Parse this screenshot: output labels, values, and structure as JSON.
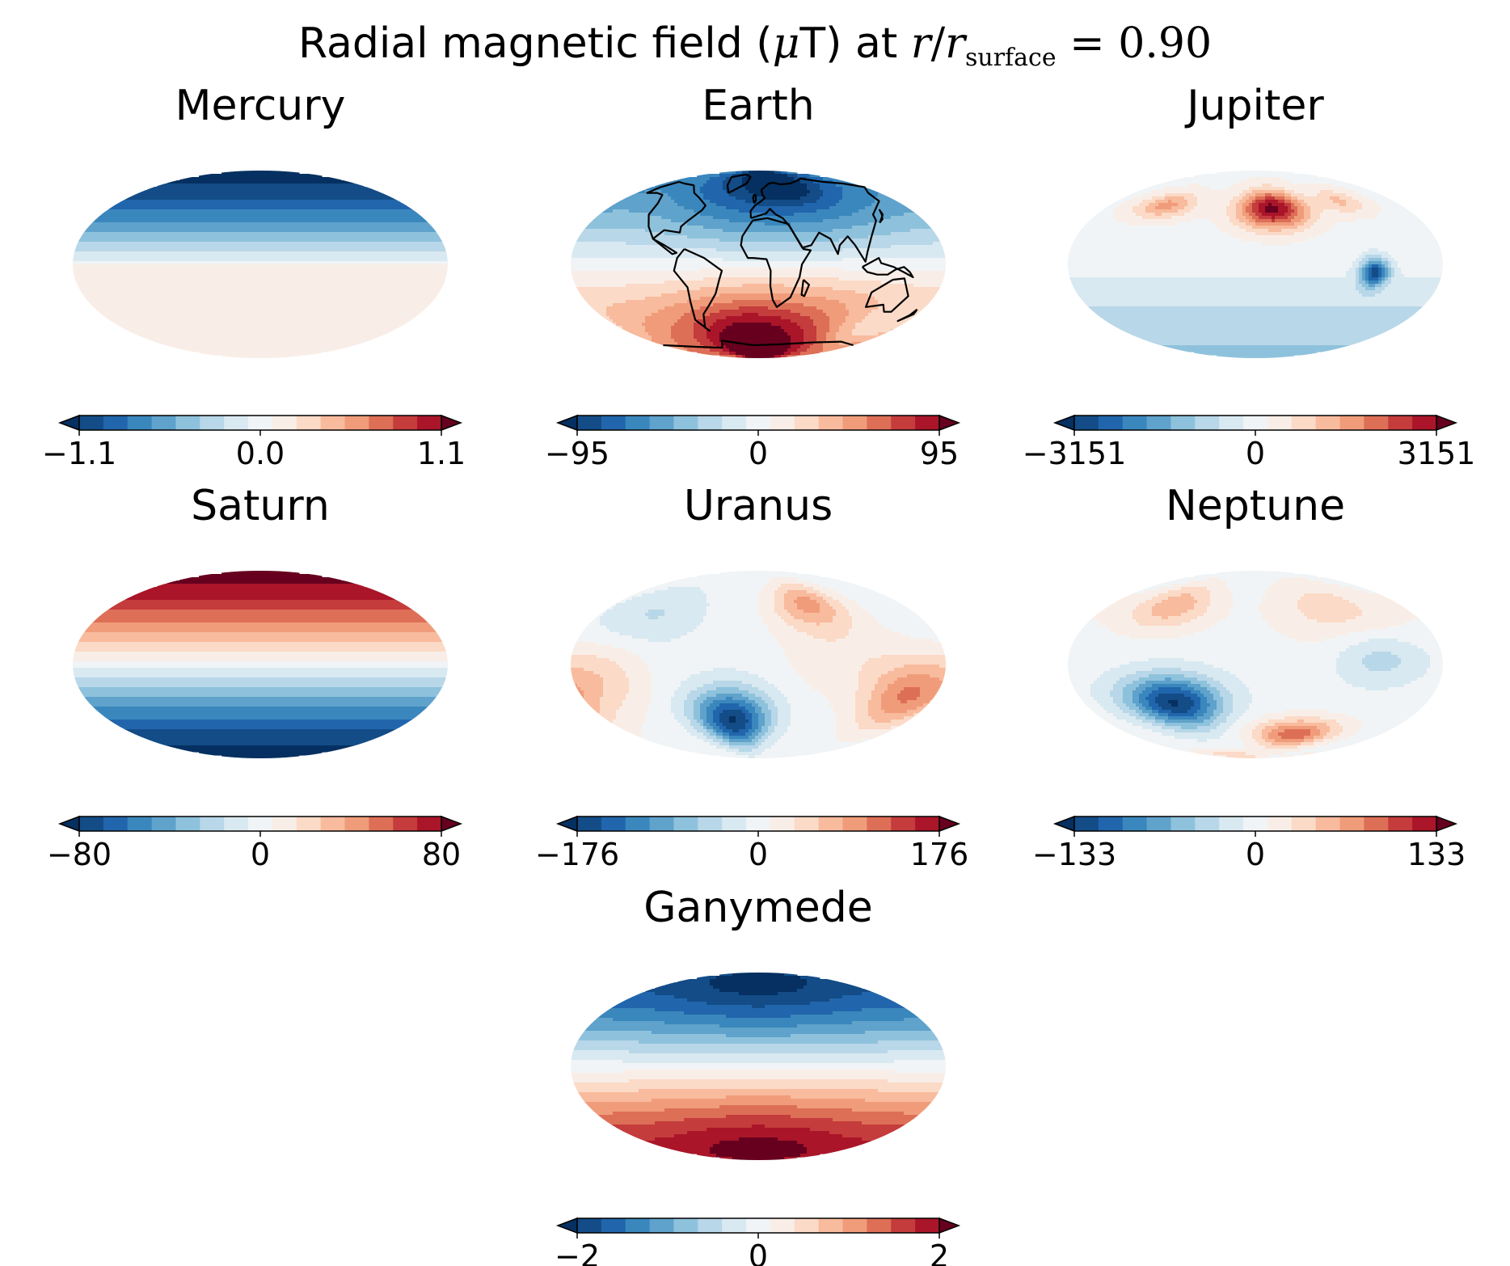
{
  "figure": {
    "title_prefix": "Radial magnetic field (",
    "title_mu": "μ",
    "title_mid": "T) at ",
    "title_r": "r",
    "title_slash": "/",
    "title_r2": "r",
    "title_sub": "surface",
    "title_eq": " = ",
    "title_val": "0.90"
  },
  "colormap": [
    "#053061",
    "#134c87",
    "#2166ac",
    "#3a87bd",
    "#5fa2cb",
    "#8ec2dc",
    "#b8d7e8",
    "#d9e9f1",
    "#f0f4f6",
    "#f9eee7",
    "#fbdac7",
    "#f8bb9d",
    "#f09c7b",
    "#dd6f57",
    "#c43c3c",
    "#aa1529",
    "#67001f"
  ],
  "chart_data": [
    {
      "type": "heatmap",
      "title": "Mercury",
      "projection": "mollweide",
      "colorbar": {
        "min": -1.1,
        "max": 1.1,
        "ticks": [
          "−1.1",
          "0.0",
          "1.1"
        ],
        "extend": "both"
      },
      "pattern": "zonal dipole, negative in north"
    },
    {
      "type": "heatmap",
      "title": "Earth",
      "projection": "mollweide",
      "coastlines": true,
      "colorbar": {
        "min": -95,
        "max": 95,
        "ticks": [
          "−95",
          "0",
          "95"
        ],
        "extend": "both"
      },
      "pattern": "dipole, negative in north"
    },
    {
      "type": "heatmap",
      "title": "Jupiter",
      "projection": "mollweide",
      "colorbar": {
        "min": -3151,
        "max": 3151,
        "ticks": [
          "−3151",
          "0",
          "3151"
        ],
        "extend": "both"
      },
      "pattern": "strong positive northern spot, negative equatorial spot"
    },
    {
      "type": "heatmap",
      "title": "Saturn",
      "projection": "mollweide",
      "colorbar": {
        "min": -80,
        "max": 80,
        "ticks": [
          "−80",
          "0",
          "80"
        ],
        "extend": "both"
      },
      "pattern": "zonal dipole, positive in north"
    },
    {
      "type": "heatmap",
      "title": "Uranus",
      "projection": "mollweide",
      "colorbar": {
        "min": -176,
        "max": 176,
        "ticks": [
          "−176",
          "0",
          "176"
        ],
        "extend": "both"
      },
      "pattern": "multipolar, strong negative southern patch"
    },
    {
      "type": "heatmap",
      "title": "Neptune",
      "projection": "mollweide",
      "colorbar": {
        "min": -133,
        "max": 133,
        "ticks": [
          "−133",
          "0",
          "133"
        ],
        "extend": "both"
      },
      "pattern": "multipolar, strong negative western patch"
    },
    {
      "type": "heatmap",
      "title": "Ganymede",
      "projection": "mollweide",
      "colorbar": {
        "min": -2,
        "max": 2,
        "ticks": [
          "−2",
          "0",
          "2"
        ],
        "extend": "both"
      },
      "pattern": "zonal dipole, negative in north"
    }
  ]
}
